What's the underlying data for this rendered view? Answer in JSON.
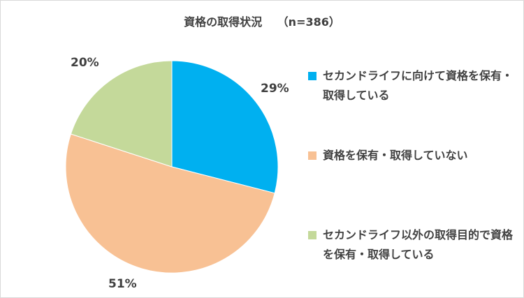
{
  "chart_data": {
    "type": "pie",
    "title": "資格の取得状況　 （n=386）",
    "slices": [
      {
        "label": "セカンドライフに向けて資格を保有・取得している",
        "value": 29,
        "value_label": "29%",
        "color": "#00B0F0"
      },
      {
        "label": "資格を保有・取得していない",
        "value": 51,
        "value_label": "51%",
        "color": "#F8C194"
      },
      {
        "label": "セカンドライフ以外の取得目的で資格を保有・取得している",
        "value": 20,
        "value_label": "20%",
        "color": "#C4D99A"
      }
    ],
    "legend_position": "right"
  }
}
